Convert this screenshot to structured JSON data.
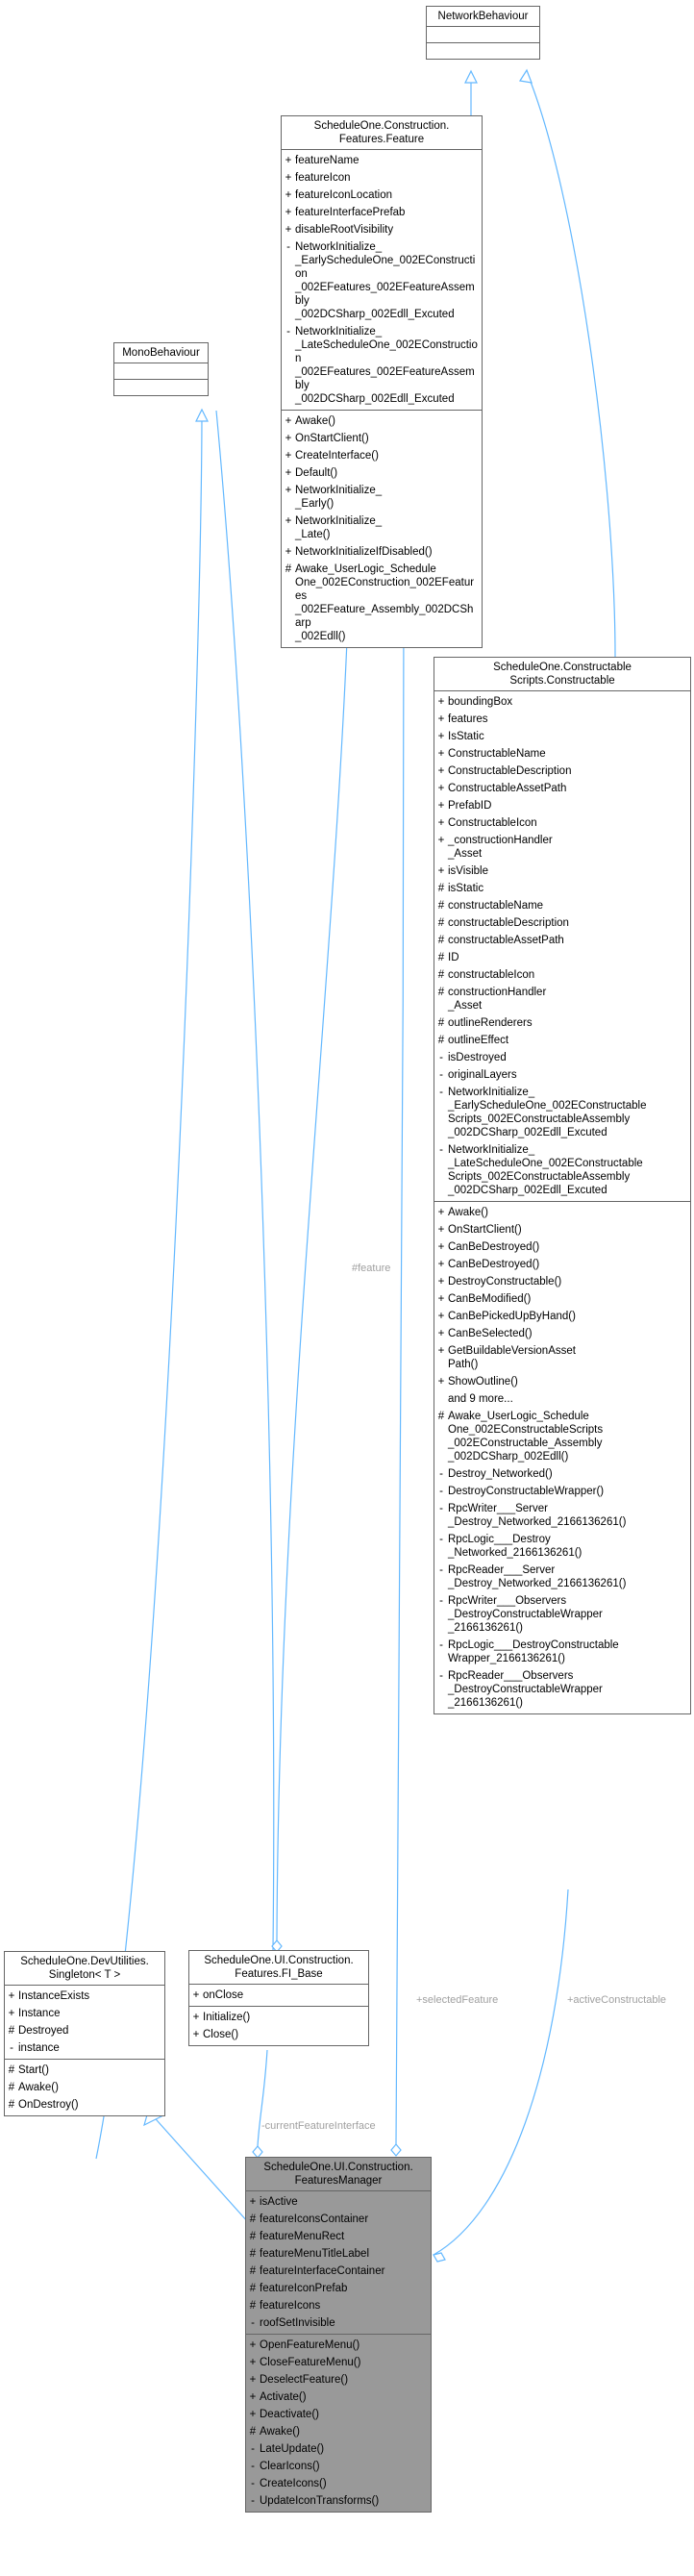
{
  "colors": {
    "edge": "#63b8ff",
    "focus_fill": "#999999",
    "border": "#666666"
  },
  "classes": {
    "network_behaviour": {
      "title": "NetworkBehaviour",
      "sections": [
        [],
        []
      ]
    },
    "feature": {
      "title": "ScheduleOne.Construction.\nFeatures.Feature",
      "sections": [
        [
          {
            "v": "+",
            "n": "featureName"
          },
          {
            "v": "+",
            "n": "featureIcon"
          },
          {
            "v": "+",
            "n": "featureIconLocation"
          },
          {
            "v": "+",
            "n": "featureInterfacePrefab"
          },
          {
            "v": "+",
            "n": "disableRootVisibility"
          },
          {
            "v": "-",
            "n": "NetworkInitialize_\n_EarlyScheduleOne_002EConstruction\n_002EFeatures_002EFeatureAssembly\n_002DCSharp_002Edll_Excuted"
          },
          {
            "v": "-",
            "n": "NetworkInitialize_\n_LateScheduleOne_002EConstruction\n_002EFeatures_002EFeatureAssembly\n_002DCSharp_002Edll_Excuted"
          }
        ],
        [
          {
            "v": "+",
            "n": "Awake()"
          },
          {
            "v": "+",
            "n": "OnStartClient()"
          },
          {
            "v": "+",
            "n": "CreateInterface()"
          },
          {
            "v": "+",
            "n": "Default()"
          },
          {
            "v": "+",
            "n": "NetworkInitialize_\n_Early()"
          },
          {
            "v": "+",
            "n": "NetworkInitialize_\n_Late()"
          },
          {
            "v": "+",
            "n": "NetworkInitializeIfDisabled()"
          },
          {
            "v": "#",
            "n": "Awake_UserLogic_Schedule\nOne_002EConstruction_002EFeatures\n_002EFeature_Assembly_002DCSharp\n_002Edll()"
          }
        ]
      ]
    },
    "mono_behaviour": {
      "title": "MonoBehaviour",
      "sections": [
        [],
        []
      ]
    },
    "constructable": {
      "title": "ScheduleOne.Constructable\nScripts.Constructable",
      "sections": [
        [
          {
            "v": "+",
            "n": "boundingBox"
          },
          {
            "v": "+",
            "n": "features"
          },
          {
            "v": "+",
            "n": "IsStatic"
          },
          {
            "v": "+",
            "n": "ConstructableName"
          },
          {
            "v": "+",
            "n": "ConstructableDescription"
          },
          {
            "v": "+",
            "n": "ConstructableAssetPath"
          },
          {
            "v": "+",
            "n": "PrefabID"
          },
          {
            "v": "+",
            "n": "ConstructableIcon"
          },
          {
            "v": "+",
            "n": "_constructionHandler\n_Asset"
          },
          {
            "v": "+",
            "n": "isVisible"
          },
          {
            "v": "#",
            "n": "isStatic"
          },
          {
            "v": "#",
            "n": "constructableName"
          },
          {
            "v": "#",
            "n": "constructableDescription"
          },
          {
            "v": "#",
            "n": "constructableAssetPath"
          },
          {
            "v": "#",
            "n": "ID"
          },
          {
            "v": "#",
            "n": "constructableIcon"
          },
          {
            "v": "#",
            "n": "constructionHandler\n_Asset"
          },
          {
            "v": "#",
            "n": "outlineRenderers"
          },
          {
            "v": "#",
            "n": "outlineEffect"
          },
          {
            "v": "-",
            "n": "isDestroyed"
          },
          {
            "v": "-",
            "n": "originalLayers"
          },
          {
            "v": "-",
            "n": "NetworkInitialize_\n_EarlyScheduleOne_002EConstructable\nScripts_002EConstructableAssembly\n_002DCSharp_002Edll_Excuted"
          },
          {
            "v": "-",
            "n": "NetworkInitialize_\n_LateScheduleOne_002EConstructable\nScripts_002EConstructableAssembly\n_002DCSharp_002Edll_Excuted"
          }
        ],
        [
          {
            "v": "+",
            "n": "Awake()"
          },
          {
            "v": "+",
            "n": "OnStartClient()"
          },
          {
            "v": "+",
            "n": "CanBeDestroyed()"
          },
          {
            "v": "+",
            "n": "CanBeDestroyed()"
          },
          {
            "v": "+",
            "n": "DestroyConstructable()"
          },
          {
            "v": "+",
            "n": "CanBeModified()"
          },
          {
            "v": "+",
            "n": "CanBePickedUpByHand()"
          },
          {
            "v": "+",
            "n": "CanBeSelected()"
          },
          {
            "v": "+",
            "n": "GetBuildableVersionAsset\nPath()"
          },
          {
            "v": "+",
            "n": "ShowOutline()"
          },
          {
            "v": "",
            "n": "and 9 more..."
          },
          {
            "v": "#",
            "n": "Awake_UserLogic_Schedule\nOne_002EConstructableScripts\n_002EConstructable_Assembly\n_002DCSharp_002Edll()"
          },
          {
            "v": "-",
            "n": "Destroy_Networked()"
          },
          {
            "v": "-",
            "n": "DestroyConstructableWrapper()"
          },
          {
            "v": "-",
            "n": "RpcWriter___Server\n_Destroy_Networked_2166136261()"
          },
          {
            "v": "-",
            "n": "RpcLogic___Destroy\n_Networked_2166136261()"
          },
          {
            "v": "-",
            "n": "RpcReader___Server\n_Destroy_Networked_2166136261()"
          },
          {
            "v": "-",
            "n": "RpcWriter___Observers\n_DestroyConstructableWrapper\n_2166136261()"
          },
          {
            "v": "-",
            "n": "RpcLogic___DestroyConstructable\nWrapper_2166136261()"
          },
          {
            "v": "-",
            "n": "RpcReader___Observers\n_DestroyConstructableWrapper\n_2166136261()"
          }
        ]
      ]
    },
    "singleton": {
      "title": "ScheduleOne.DevUtilities.\nSingleton< T >",
      "sections": [
        [
          {
            "v": "+",
            "n": "InstanceExists"
          },
          {
            "v": "+",
            "n": "Instance"
          },
          {
            "v": "#",
            "n": "Destroyed"
          },
          {
            "v": "-",
            "n": "instance"
          }
        ],
        [
          {
            "v": "#",
            "n": "Start()"
          },
          {
            "v": "#",
            "n": "Awake()"
          },
          {
            "v": "#",
            "n": "OnDestroy()"
          }
        ]
      ]
    },
    "fi_base": {
      "title": "ScheduleOne.UI.Construction.\nFeatures.FI_Base",
      "sections": [
        [
          {
            "v": "+",
            "n": "onClose"
          }
        ],
        [
          {
            "v": "+",
            "n": "Initialize()"
          },
          {
            "v": "+",
            "n": "Close()"
          }
        ]
      ]
    },
    "features_manager": {
      "title": "ScheduleOne.UI.Construction.\nFeaturesManager",
      "sections": [
        [
          {
            "v": "+",
            "n": "isActive"
          },
          {
            "v": "#",
            "n": "featureIconsContainer"
          },
          {
            "v": "#",
            "n": "featureMenuRect"
          },
          {
            "v": "#",
            "n": "featureMenuTitleLabel"
          },
          {
            "v": "#",
            "n": "featureInterfaceContainer"
          },
          {
            "v": "#",
            "n": "featureIconPrefab"
          },
          {
            "v": "#",
            "n": "featureIcons"
          },
          {
            "v": "-",
            "n": "roofSetInvisible"
          }
        ],
        [
          {
            "v": "+",
            "n": "OpenFeatureMenu()"
          },
          {
            "v": "+",
            "n": "CloseFeatureMenu()"
          },
          {
            "v": "+",
            "n": "DeselectFeature()"
          },
          {
            "v": "+",
            "n": "Activate()"
          },
          {
            "v": "+",
            "n": "Deactivate()"
          },
          {
            "v": "#",
            "n": "Awake()"
          },
          {
            "v": "-",
            "n": "LateUpdate()"
          },
          {
            "v": "-",
            "n": "ClearIcons()"
          },
          {
            "v": "-",
            "n": "CreateIcons()"
          },
          {
            "v": "-",
            "n": "UpdateIconTransforms()"
          }
        ]
      ]
    }
  },
  "edge_labels": {
    "feature": "#feature",
    "selected_feature": "+selectedFeature",
    "active_constructable": "+activeConstructable",
    "current_feature_interface": "-currentFeatureInterface"
  }
}
